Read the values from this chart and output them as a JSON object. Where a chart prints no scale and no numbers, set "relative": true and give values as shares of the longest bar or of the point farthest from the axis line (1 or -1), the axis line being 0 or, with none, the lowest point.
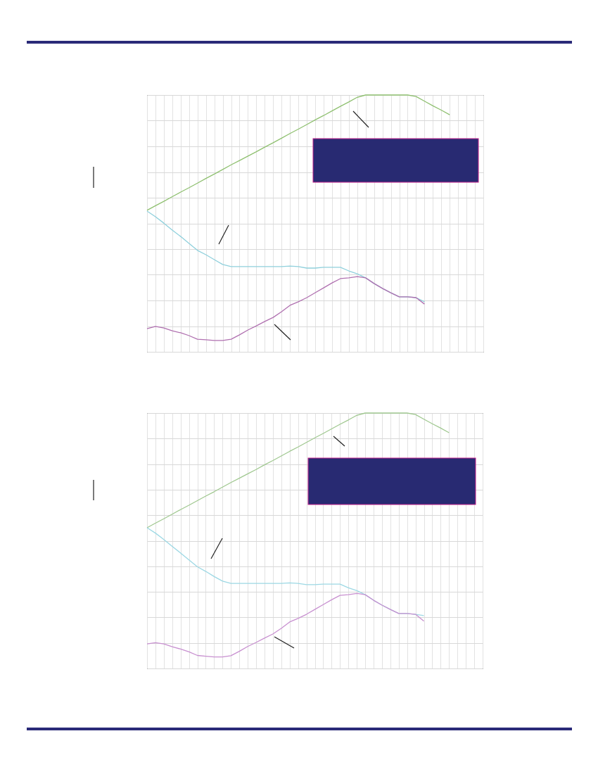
{
  "chart_data": [
    {
      "type": "line",
      "relative": true,
      "grid": true,
      "legend": false,
      "categories": [
        null,
        null,
        null,
        null,
        null,
        null,
        null,
        null,
        null,
        null,
        null,
        null,
        null,
        null,
        null,
        null,
        null,
        null,
        null,
        null,
        null,
        null,
        null,
        null,
        null,
        null,
        null,
        null,
        null,
        null,
        null,
        null,
        null,
        null,
        null,
        null,
        null,
        null,
        null,
        null,
        null
      ],
      "series": [
        {
          "color": "#8fc070",
          "values": [
            0.551,
            0.569,
            0.586,
            0.604,
            0.622,
            0.639,
            0.657,
            0.675,
            0.692,
            0.71,
            0.728,
            0.745,
            0.762,
            0.779,
            0.797,
            0.814,
            0.832,
            0.85,
            0.867,
            0.885,
            0.903,
            0.92,
            0.938,
            0.956,
            0.973,
            0.991,
            1,
            1,
            1,
            1,
            1,
            1,
            0.994,
            0.976,
            0.958,
            0.941,
            0.923,
            null,
            null,
            null,
            null
          ]
        },
        {
          "color": "#8fd0dc",
          "values": [
            0.548,
            0.526,
            0.501,
            0.474,
            0.449,
            0.422,
            0.395,
            0.378,
            0.359,
            0.34,
            0.332,
            0.332,
            0.332,
            0.332,
            0.332,
            0.332,
            0.332,
            0.334,
            0.332,
            0.326,
            0.326,
            0.329,
            0.329,
            0.329,
            0.315,
            0.304,
            0.288,
            0.266,
            0.247,
            0.23,
            0.214,
            0.214,
            0.211,
            0.195,
            null,
            null,
            null,
            null,
            null,
            null,
            null
          ]
        },
        {
          "color": "#b070b0",
          "values": [
            0.09,
            0.099,
            0.093,
            0.082,
            0.074,
            0.063,
            0.049,
            0.047,
            0.044,
            0.044,
            0.049,
            0.066,
            0.085,
            0.101,
            0.118,
            0.134,
            0.156,
            0.181,
            0.195,
            0.211,
            0.23,
            0.249,
            0.268,
            0.285,
            0.288,
            0.293,
            0.288,
            0.266,
            0.247,
            0.23,
            0.214,
            0.214,
            0.211,
            0.186,
            null,
            null,
            null,
            null,
            null,
            null,
            null
          ]
        }
      ]
    },
    {
      "type": "line",
      "relative": true,
      "grid": true,
      "legend": false,
      "categories": [
        null,
        null,
        null,
        null,
        null,
        null,
        null,
        null,
        null,
        null,
        null,
        null,
        null,
        null,
        null,
        null,
        null,
        null,
        null,
        null,
        null,
        null,
        null,
        null,
        null,
        null,
        null,
        null,
        null,
        null,
        null,
        null,
        null,
        null,
        null,
        null,
        null,
        null,
        null,
        null,
        null
      ],
      "series": [
        {
          "color": "#a0c890",
          "values": [
            0.551,
            0.569,
            0.586,
            0.604,
            0.622,
            0.639,
            0.657,
            0.675,
            0.692,
            0.71,
            0.728,
            0.745,
            0.762,
            0.779,
            0.797,
            0.814,
            0.832,
            0.85,
            0.867,
            0.885,
            0.903,
            0.92,
            0.938,
            0.956,
            0.973,
            0.991,
            1,
            1,
            1,
            1,
            1,
            1,
            0.994,
            0.976,
            0.958,
            0.941,
            0.923,
            null,
            null,
            null,
            null
          ]
        },
        {
          "color": "#9cd8e4",
          "values": [
            0.551,
            0.53,
            0.505,
            0.478,
            0.452,
            0.425,
            0.398,
            0.38,
            0.36,
            0.342,
            0.333,
            0.333,
            0.333,
            0.333,
            0.333,
            0.333,
            0.333,
            0.335,
            0.333,
            0.328,
            0.328,
            0.33,
            0.33,
            0.33,
            0.316,
            0.305,
            0.289,
            0.267,
            0.248,
            0.231,
            0.215,
            0.215,
            0.212,
            0.207,
            null,
            null,
            null,
            null,
            null,
            null,
            null
          ]
        },
        {
          "color": "#c890d0",
          "values": [
            0.096,
            0.101,
            0.096,
            0.085,
            0.076,
            0.065,
            0.051,
            0.048,
            0.045,
            0.045,
            0.05,
            0.067,
            0.086,
            0.102,
            0.119,
            0.135,
            0.157,
            0.182,
            0.196,
            0.212,
            0.231,
            0.25,
            0.269,
            0.286,
            0.289,
            0.294,
            0.289,
            0.267,
            0.248,
            0.231,
            0.215,
            0.215,
            0.212,
            0.185,
            null,
            null,
            null,
            null,
            null,
            null,
            null
          ]
        }
      ]
    }
  ]
}
